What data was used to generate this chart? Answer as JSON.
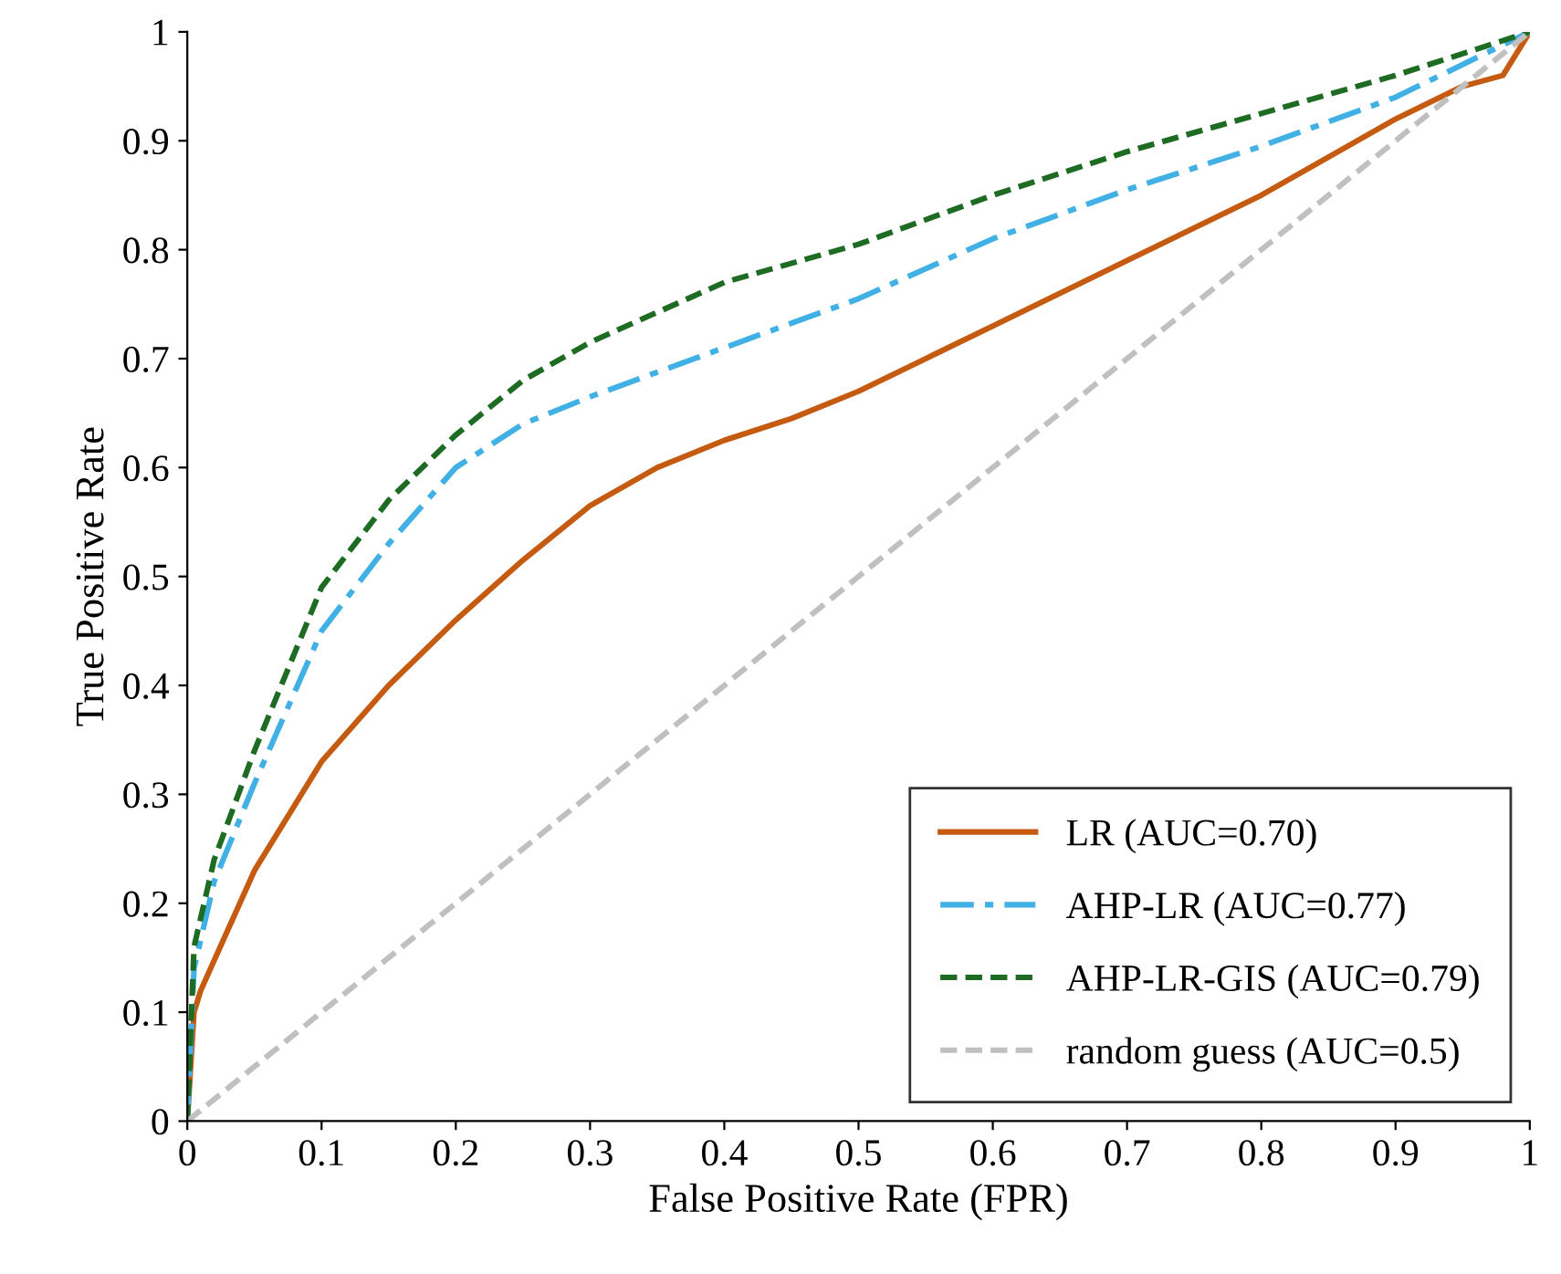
{
  "chart_data": {
    "type": "line",
    "xlabel": "False Positive Rate (FPR)",
    "ylabel": "True Positive Rate",
    "xlim": [
      0,
      1
    ],
    "ylim": [
      0,
      1
    ],
    "xticks": [
      0,
      0.1,
      0.2,
      0.3,
      0.4,
      0.5,
      0.6,
      0.7,
      0.8,
      0.9,
      1
    ],
    "yticks": [
      0,
      0.1,
      0.2,
      0.3,
      0.4,
      0.5,
      0.6,
      0.7,
      0.8,
      0.9,
      1
    ],
    "grid": false,
    "legend": "bottom right",
    "marker": "none",
    "series": [
      {
        "name": "LR (AUC=0.70)",
        "color": "#c55a11",
        "line_style": "solid",
        "x": [
          0,
          0.005,
          0.01,
          0.05,
          0.1,
          0.15,
          0.2,
          0.25,
          0.3,
          0.35,
          0.4,
          0.45,
          0.5,
          0.6,
          0.7,
          0.8,
          0.9,
          0.95,
          0.98,
          1
        ],
        "values": [
          0,
          0.1,
          0.12,
          0.23,
          0.33,
          0.4,
          0.46,
          0.515,
          0.565,
          0.6,
          0.625,
          0.645,
          0.67,
          0.73,
          0.79,
          0.85,
          0.92,
          0.95,
          0.96,
          1
        ]
      },
      {
        "name": "AHP-LR (AUC=0.77)",
        "color": "#41b0e4",
        "line_style": "dashdot",
        "x": [
          0,
          0.005,
          0.02,
          0.05,
          0.1,
          0.15,
          0.2,
          0.25,
          0.3,
          0.4,
          0.5,
          0.6,
          0.7,
          0.8,
          0.9,
          1
        ],
        "values": [
          0,
          0.14,
          0.22,
          0.31,
          0.45,
          0.53,
          0.6,
          0.64,
          0.665,
          0.71,
          0.755,
          0.81,
          0.855,
          0.895,
          0.94,
          1
        ]
      },
      {
        "name": "AHP-LR-GIS (AUC=0.79)",
        "color": "#1e6b24",
        "line_style": "dashed",
        "x": [
          0,
          0.005,
          0.02,
          0.05,
          0.1,
          0.15,
          0.2,
          0.25,
          0.3,
          0.4,
          0.5,
          0.6,
          0.7,
          0.8,
          0.9,
          1
        ],
        "values": [
          0,
          0.16,
          0.24,
          0.34,
          0.49,
          0.57,
          0.63,
          0.68,
          0.715,
          0.77,
          0.805,
          0.85,
          0.89,
          0.925,
          0.96,
          1
        ]
      },
      {
        "name": "random guess (AUC=0.5)",
        "color": "#c0c0c0",
        "line_style": "dashed",
        "x": [
          0,
          1
        ],
        "values": [
          0,
          1
        ]
      }
    ]
  }
}
